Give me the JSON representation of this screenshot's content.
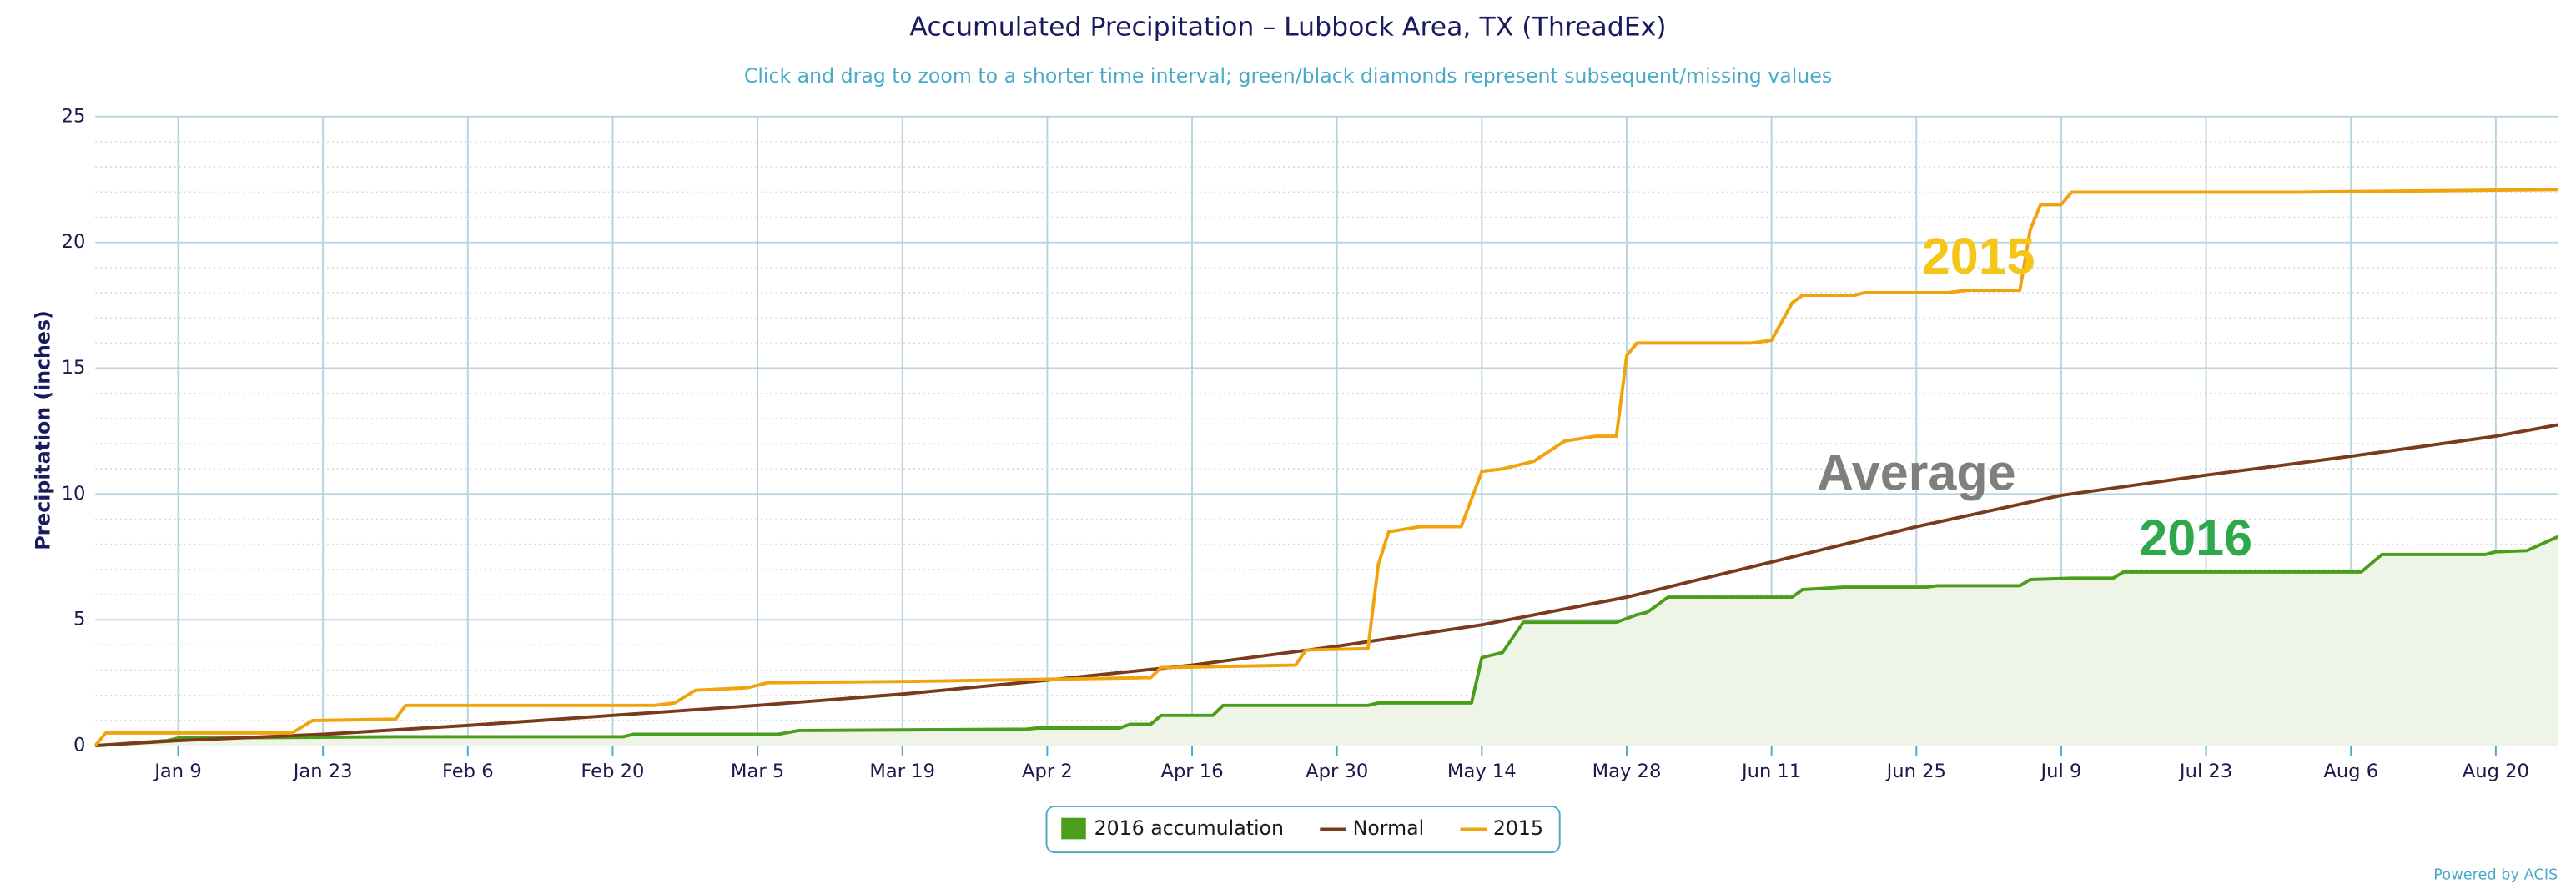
{
  "chart_data": {
    "type": "line",
    "title": "Accumulated Precipitation – Lubbock Area, TX (ThreadEx)",
    "subtitle": "Click and drag to zoom to a shorter time interval; green/black diamonds represent subsequent/missing values",
    "y_label": "Precipitation (inches)",
    "credit": "Powered by ACIS",
    "xlim": [
      1,
      239
    ],
    "xticks": [
      {
        "value": 9,
        "label": "Jan 9"
      },
      {
        "value": 23,
        "label": "Jan 23"
      },
      {
        "value": 37,
        "label": "Feb 6"
      },
      {
        "value": 51,
        "label": "Feb 20"
      },
      {
        "value": 65,
        "label": "Mar 5"
      },
      {
        "value": 79,
        "label": "Mar 19"
      },
      {
        "value": 93,
        "label": "Apr 2"
      },
      {
        "value": 107,
        "label": "Apr 16"
      },
      {
        "value": 121,
        "label": "Apr 30"
      },
      {
        "value": 135,
        "label": "May 14"
      },
      {
        "value": 149,
        "label": "May 28"
      },
      {
        "value": 163,
        "label": "Jun 11"
      },
      {
        "value": 177,
        "label": "Jun 25"
      },
      {
        "value": 191,
        "label": "Jul 9"
      },
      {
        "value": 205,
        "label": "Jul 23"
      },
      {
        "value": 219,
        "label": "Aug 6"
      },
      {
        "value": 233,
        "label": "Aug 20"
      }
    ],
    "ylim": [
      0,
      25
    ],
    "yticks": [
      0,
      5,
      10,
      15,
      20,
      25
    ],
    "minor_yticks": [
      1,
      2,
      3,
      4,
      6,
      7,
      8,
      9,
      11,
      12,
      13,
      14,
      16,
      17,
      18,
      19,
      21,
      22,
      23,
      24
    ],
    "grid": true,
    "legend": "bottom",
    "series": [
      {
        "name": "2016 accumulation",
        "color": "#4a9e1c",
        "fill": "#eef5e6",
        "area": true,
        "x": [
          1,
          8,
          9,
          30,
          52,
          53,
          67,
          69,
          91,
          92,
          100,
          101,
          103,
          104,
          109,
          110,
          124,
          125,
          134,
          135,
          137,
          139,
          148,
          150,
          151,
          153,
          165,
          166,
          170,
          178,
          179,
          187,
          188,
          192,
          196,
          197,
          220,
          222,
          232,
          233,
          236,
          239
        ],
        "values": [
          0,
          0.2,
          0.3,
          0.35,
          0.35,
          0.45,
          0.45,
          0.6,
          0.65,
          0.7,
          0.7,
          0.85,
          0.85,
          1.2,
          1.2,
          1.6,
          1.6,
          1.7,
          1.7,
          3.5,
          3.7,
          4.9,
          4.9,
          5.2,
          5.3,
          5.9,
          5.9,
          6.2,
          6.3,
          6.3,
          6.35,
          6.35,
          6.6,
          6.65,
          6.65,
          6.9,
          6.9,
          7.6,
          7.6,
          7.7,
          7.75,
          8.3
        ]
      },
      {
        "name": "Normal",
        "color": "#7a3b1a",
        "area": false,
        "x": [
          1,
          9,
          23,
          37,
          51,
          65,
          79,
          93,
          107,
          121,
          135,
          149,
          163,
          177,
          191,
          205,
          219,
          233,
          239
        ],
        "values": [
          0,
          0.2,
          0.45,
          0.8,
          1.2,
          1.6,
          2.05,
          2.6,
          3.2,
          3.95,
          4.8,
          5.9,
          7.3,
          8.7,
          9.95,
          10.75,
          11.5,
          12.3,
          12.75
        ]
      },
      {
        "name": "2015",
        "color": "#f0a30a",
        "area": false,
        "x": [
          1,
          2,
          20,
          22,
          30,
          31,
          55,
          57,
          59,
          64,
          66,
          80,
          103,
          104,
          117,
          118,
          124,
          125,
          126,
          129,
          133,
          135,
          137,
          140,
          143,
          146,
          148,
          149,
          150,
          161,
          163,
          165,
          166,
          171,
          172,
          180,
          182,
          187,
          188,
          189,
          191,
          192,
          214,
          239
        ],
        "values": [
          0,
          0.5,
          0.5,
          1.0,
          1.05,
          1.6,
          1.6,
          1.7,
          2.2,
          2.3,
          2.5,
          2.55,
          2.7,
          3.1,
          3.2,
          3.8,
          3.85,
          7.2,
          8.5,
          8.7,
          8.7,
          10.9,
          11.0,
          11.3,
          12.1,
          12.3,
          12.3,
          15.5,
          16.0,
          16.0,
          16.1,
          17.6,
          17.9,
          17.9,
          18.0,
          18.0,
          18.1,
          18.1,
          20.5,
          21.5,
          21.5,
          22.0,
          22.0,
          22.1
        ]
      }
    ],
    "annotations": [
      {
        "text": "2015",
        "color": "#f5c518",
        "x": 183,
        "y": 19.3
      },
      {
        "text": "Average",
        "color": "#7f7f7f",
        "x": 177,
        "y": 10.7
      },
      {
        "text": "2016",
        "color": "#2ea84a",
        "x": 204,
        "y": 8.1
      }
    ]
  }
}
